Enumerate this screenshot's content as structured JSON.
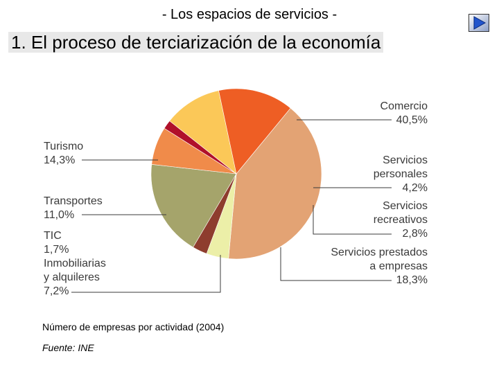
{
  "header": {
    "subtitle": "- Los espacios de servicios -",
    "title": "1. El proceso de terciarización de la economía"
  },
  "nav": {
    "next_icon": "play-triangle-icon",
    "accent": "#2255cc"
  },
  "chart_data": {
    "type": "pie",
    "title": "",
    "unit": "%",
    "slices": [
      {
        "label": "Comercio",
        "value": 40.5,
        "display": "40,5%",
        "color": "#e3a374"
      },
      {
        "label": "Servicios personales",
        "value": 4.2,
        "display": "4,2%",
        "color": "#ecefa8"
      },
      {
        "label": "Servicios recreativos",
        "value": 2.8,
        "display": "2,8%",
        "color": "#8e3d2e"
      },
      {
        "label": "Servicios prestados a empresas",
        "value": 18.3,
        "display": "18,3%",
        "color": "#a5a46b"
      },
      {
        "label": "Inmobiliarias y alquileres",
        "value": 7.2,
        "display": "7,2%",
        "color": "#f08b4a"
      },
      {
        "label": "TIC",
        "value": 1.7,
        "display": "1,7%",
        "color": "#b0102a"
      },
      {
        "label": "Transportes",
        "value": 11.0,
        "display": "11,0%",
        "color": "#fbc858"
      },
      {
        "label": "Turismo",
        "value": 14.3,
        "display": "14,3%",
        "color": "#ee5e24"
      }
    ]
  },
  "caption": "Número de empresas por actividad (2004)",
  "source": "Fuente: INE"
}
